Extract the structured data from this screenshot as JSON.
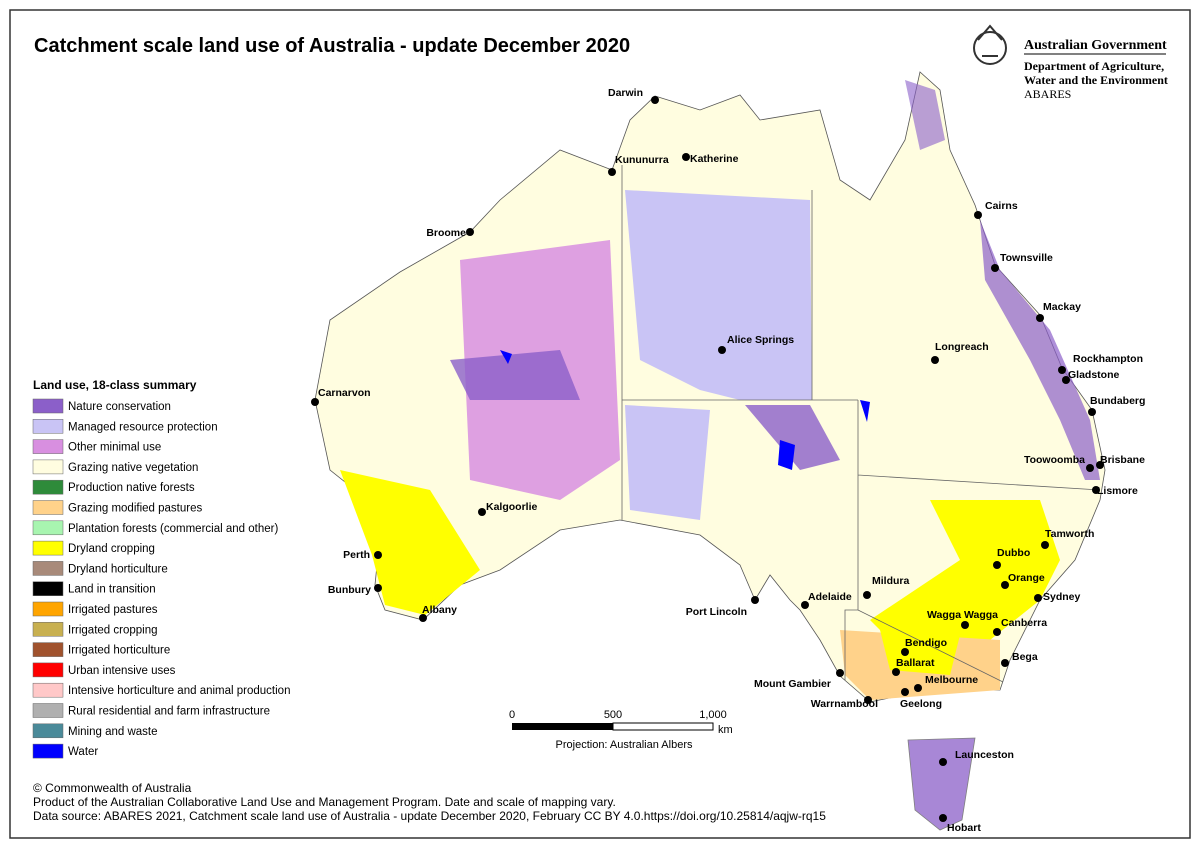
{
  "header": {
    "title": "Catchment scale land use of Australia - update December 2020",
    "government": [
      "Australian Government",
      "Department of Agriculture,",
      "Water and the Environment",
      "ABARES"
    ]
  },
  "legend": {
    "title": "Land use, 18-class summary",
    "items": [
      {
        "label": "Nature conservation",
        "color": "#8b5fc9"
      },
      {
        "label": "Managed resource protection",
        "color": "#c9c4f5"
      },
      {
        "label": "Other minimal use",
        "color": "#d88fe0"
      },
      {
        "label": "Grazing native vegetation",
        "color": "#fffde0"
      },
      {
        "label": "Production native forests",
        "color": "#2e8b3a"
      },
      {
        "label": "Grazing modified pastures",
        "color": "#ffd28a"
      },
      {
        "label": "Plantation forests (commercial and other)",
        "color": "#a8f5b0"
      },
      {
        "label": "Dryland cropping",
        "color": "#ffff00"
      },
      {
        "label": "Dryland horticulture",
        "color": "#a88a7a"
      },
      {
        "label": "Land in transition",
        "color": "#000000"
      },
      {
        "label": "Irrigated pastures",
        "color": "#ffa500"
      },
      {
        "label": "Irrigated cropping",
        "color": "#c8b050"
      },
      {
        "label": "Irrigated horticulture",
        "color": "#a0522d"
      },
      {
        "label": "Urban intensive uses",
        "color": "#ff0000"
      },
      {
        "label": "Intensive horticulture and animal production",
        "color": "#ffc8c8"
      },
      {
        "label": "Rural residential and farm infrastructure",
        "color": "#b0b0b0"
      },
      {
        "label": "Mining and waste",
        "color": "#4a8a99"
      },
      {
        "label": "Water",
        "color": "#0000ff"
      }
    ]
  },
  "cities": [
    "Darwin",
    "Kununurra",
    "Katherine",
    "Broome",
    "Cairns",
    "Townsville",
    "Mackay",
    "Carnarvon",
    "Alice Springs",
    "Longreach",
    "Rockhampton",
    "Gladstone",
    "Bundaberg",
    "Toowoomba",
    "Brisbane",
    "Lismore",
    "Kalgoorlie",
    "Tamworth",
    "Perth",
    "Dubbo",
    "Orange",
    "Bunbury",
    "Mildura",
    "Sydney",
    "Port Lincoln",
    "Adelaide",
    "Albany",
    "Wagga Wagga",
    "Canberra",
    "Bendigo",
    "Bega",
    "Mount Gambier",
    "Ballarat",
    "Melbourne",
    "Warrnambool",
    "Geelong",
    "Launceston",
    "Hobart"
  ],
  "scale": {
    "labels": [
      "0",
      "500",
      "1,000"
    ],
    "unit": "km",
    "projection": "Projection: Australian Albers"
  },
  "footer": [
    "© Commonwealth of Australia",
    "Product of the Australian Collaborative Land Use and Management Program. Date and scale of mapping vary.",
    "Data source: ABARES 2021, Catchment scale land use of Australia - update December 2020, February CC BY 4.0.https://doi.org/10.25814/aqjw-rq15"
  ]
}
